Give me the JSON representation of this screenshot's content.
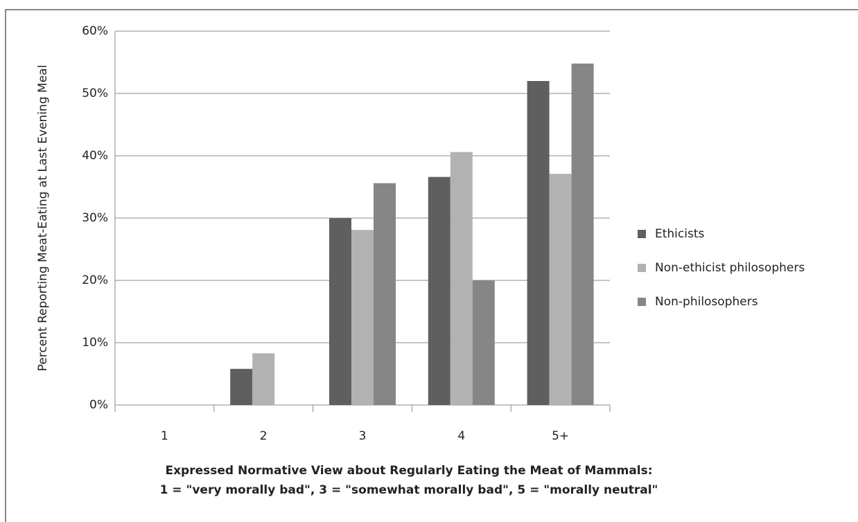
{
  "chart_data": {
    "type": "bar",
    "ylabel": "Percent Reporting Meat-Eating at Last Evening Meal",
    "xlabel": [
      "Expressed Normative View about Regularly Eating the Meat of Mammals:",
      "1 = \"very morally bad\", 3 = \"somewhat morally bad\", 5 = \"morally neutral\""
    ],
    "categories": [
      "1",
      "2",
      "3",
      "4",
      "5+"
    ],
    "series": [
      {
        "name": "Ethicists",
        "color": "#5f5f5f",
        "values": [
          0,
          5.8,
          30,
          36.6,
          52
        ]
      },
      {
        "name": "Non-ethicist philosophers",
        "color": "#b2b2b2",
        "values": [
          0,
          8.3,
          28.1,
          40.6,
          37.1
        ]
      },
      {
        "name": "Non-philosophers",
        "color": "#868686",
        "values": [
          0,
          0,
          35.6,
          20,
          54.8
        ]
      }
    ],
    "ylim": [
      0,
      60
    ],
    "yticks": [
      {
        "value": 0,
        "label": "0%"
      },
      {
        "value": 10,
        "label": "10%"
      },
      {
        "value": 20,
        "label": "20%"
      },
      {
        "value": 30,
        "label": "30%"
      },
      {
        "value": 40,
        "label": "40%"
      },
      {
        "value": 50,
        "label": "50%"
      },
      {
        "value": 60,
        "label": "60%"
      }
    ],
    "grid": true,
    "legend": "right"
  }
}
